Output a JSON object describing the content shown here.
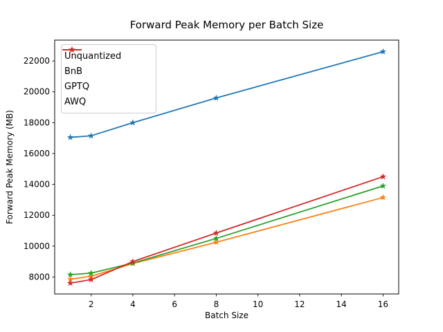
{
  "chart_data": {
    "type": "line",
    "title": "Forward Peak Memory per Batch Size",
    "xlabel": "Batch Size",
    "ylabel": "Forward Peak Memory (MB)",
    "x": [
      1,
      2,
      4,
      8,
      16
    ],
    "series": [
      {
        "name": "Unquantized",
        "color": "#1f77b4",
        "marker": "star",
        "values": [
          17050,
          17150,
          18000,
          19600,
          22600
        ]
      },
      {
        "name": "BnB",
        "color": "#ff7f0e",
        "marker": "star",
        "values": [
          7850,
          8050,
          8870,
          10250,
          13150
        ]
      },
      {
        "name": "GPTQ",
        "color": "#2ca02c",
        "marker": "star",
        "values": [
          8150,
          8250,
          8900,
          10500,
          13900
        ]
      },
      {
        "name": "AWQ",
        "color": "#d62728",
        "marker": "star",
        "values": [
          7600,
          7830,
          9000,
          10850,
          14500
        ]
      }
    ],
    "xticks": [
      2,
      4,
      6,
      8,
      10,
      12,
      14,
      16
    ],
    "yticks": [
      8000,
      10000,
      12000,
      14000,
      16000,
      18000,
      20000,
      22000
    ],
    "xlim": [
      0.25,
      16.75
    ],
    "ylim": [
      6900,
      23350
    ],
    "grid": false,
    "legend_position": "upper left",
    "axis_color": "#000000",
    "background_color": "#ffffff"
  }
}
